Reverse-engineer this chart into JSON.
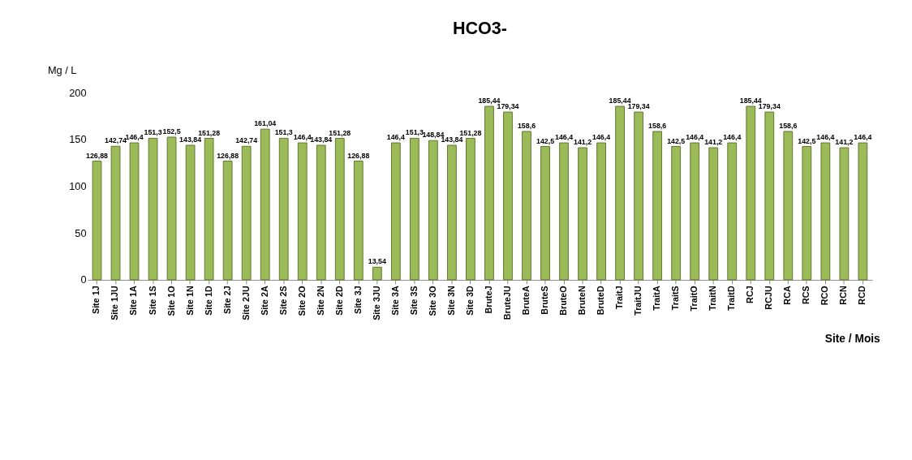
{
  "chart_data": {
    "type": "bar",
    "title": "HCO3-",
    "ylabel": "Mg / L",
    "xlabel": "Site / Mois",
    "categories": [
      "Site 1J",
      "Site 1JU",
      "Site 1A",
      "Site 1S",
      "Site 1O",
      "Site 1N",
      "Site 1D",
      "Site 2J",
      "Site 2JU",
      "Site 2A",
      "Site 2S",
      "Site 2O",
      "Site 2N",
      "Site 2D",
      "Site 3J",
      "Site 3JU",
      "Site 3A",
      "Site 3S",
      "Site 3O",
      "Site 3N",
      "Site 3D",
      "BruteJ",
      "BruteJU",
      "BruteA",
      "BruteS",
      "BruteO",
      "BruteN",
      "BruteD",
      "TraitJ",
      "TraitJU",
      "TraitA",
      "TraitS",
      "TraitO",
      "TraitN",
      "TraitD",
      "RCJ",
      "RCJU",
      "RCA",
      "RCS",
      "RCO",
      "RCN",
      "RCD"
    ],
    "values": [
      126.88,
      142.74,
      146.4,
      151.3,
      152.5,
      143.84,
      151.28,
      126.88,
      142.74,
      161.04,
      151.3,
      146.4,
      143.84,
      151.28,
      126.88,
      13.54,
      146.4,
      151.3,
      148.84,
      143.84,
      151.28,
      185.44,
      179.34,
      158.6,
      142.5,
      146.4,
      141.2,
      146.4,
      185.44,
      179.34,
      158.6,
      142.5,
      146.4,
      141.2,
      146.4,
      185.44,
      179.34,
      158.6,
      142.5,
      146.4,
      141.2,
      146.4
    ],
    "value_labels": [
      "126,88",
      "142,74",
      "146,4",
      "151,3",
      "152,5",
      "143,84",
      "151,28",
      "126,88",
      "142,74",
      "161,04",
      "151,3",
      "146,4",
      "143,84",
      "151,28",
      "126,88",
      "13,54",
      "146,4",
      "151,3",
      "148,84",
      "143,84",
      "151,28",
      "185,44",
      "179,34",
      "158,6",
      "142,5",
      "146,4",
      "141,2",
      "146,4",
      "185,44",
      "179,34",
      "158,6",
      "142,5",
      "146,4",
      "141,2",
      "146,4",
      "185,44",
      "179,34",
      "158,6",
      "142,5",
      "146,4",
      "141,2",
      "146,4"
    ],
    "color": "#9bbb59",
    "ylim": [
      0,
      200
    ],
    "yticks": [
      0,
      50,
      100,
      150,
      200
    ],
    "grid": false
  }
}
